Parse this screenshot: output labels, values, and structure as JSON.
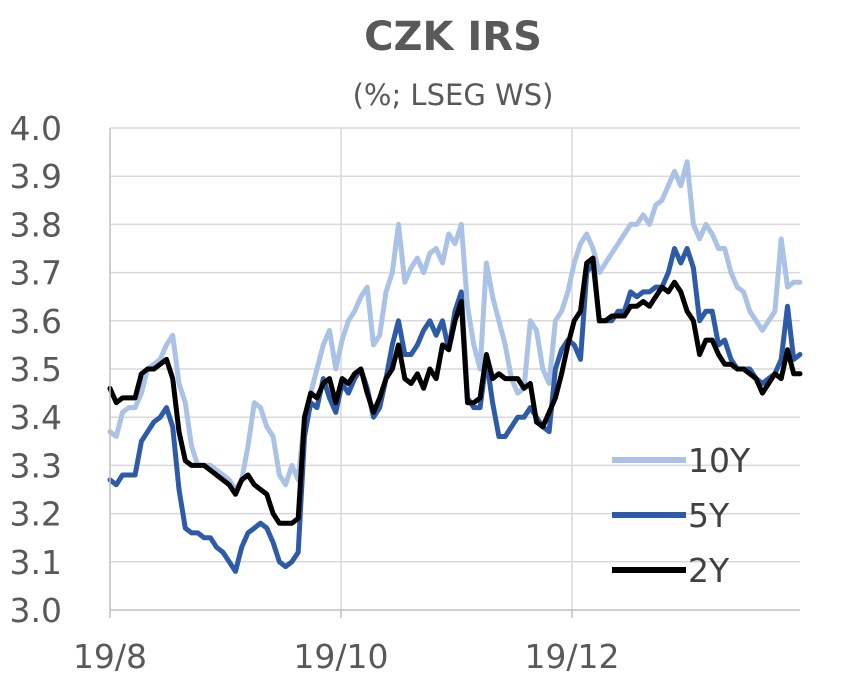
{
  "chart_data": {
    "type": "line",
    "title": "CZK IRS",
    "subtitle": "(%; LSEG WS)",
    "ylim": [
      3.0,
      4.0
    ],
    "y_ticks": [
      "4.0",
      "3.9",
      "3.8",
      "3.7",
      "3.6",
      "3.5",
      "3.4",
      "3.3",
      "3.2",
      "3.1",
      "3.0"
    ],
    "x_ticks": [
      "19/8",
      "19/10",
      "19/12"
    ],
    "grid": true,
    "legend_position": "bottom-right",
    "series": [
      {
        "name": "10Y",
        "color": "#a9c2e6",
        "values": [
          3.37,
          3.36,
          3.41,
          3.42,
          3.42,
          3.45,
          3.5,
          3.51,
          3.52,
          3.55,
          3.57,
          3.47,
          3.43,
          3.34,
          3.3,
          3.3,
          3.3,
          3.29,
          3.28,
          3.27,
          3.25,
          3.27,
          3.34,
          3.43,
          3.42,
          3.38,
          3.36,
          3.28,
          3.26,
          3.3,
          3.27,
          3.4,
          3.45,
          3.5,
          3.55,
          3.58,
          3.5,
          3.56,
          3.6,
          3.62,
          3.65,
          3.67,
          3.55,
          3.57,
          3.66,
          3.7,
          3.8,
          3.68,
          3.71,
          3.73,
          3.7,
          3.74,
          3.75,
          3.72,
          3.78,
          3.76,
          3.8,
          3.63,
          3.55,
          3.5,
          3.72,
          3.65,
          3.6,
          3.55,
          3.48,
          3.45,
          3.46,
          3.6,
          3.58,
          3.5,
          3.47,
          3.6,
          3.62,
          3.66,
          3.72,
          3.76,
          3.78,
          3.75,
          3.7,
          3.72,
          3.74,
          3.76,
          3.78,
          3.8,
          3.8,
          3.82,
          3.8,
          3.84,
          3.85,
          3.88,
          3.91,
          3.88,
          3.93,
          3.8,
          3.77,
          3.8,
          3.78,
          3.75,
          3.75,
          3.7,
          3.67,
          3.66,
          3.62,
          3.6,
          3.58,
          3.6,
          3.62,
          3.77,
          3.67,
          3.68,
          3.68
        ]
      },
      {
        "name": "5Y",
        "color": "#2e5ba8",
        "values": [
          3.27,
          3.26,
          3.28,
          3.28,
          3.28,
          3.35,
          3.37,
          3.39,
          3.4,
          3.42,
          3.38,
          3.25,
          3.17,
          3.16,
          3.16,
          3.15,
          3.15,
          3.13,
          3.12,
          3.1,
          3.08,
          3.13,
          3.16,
          3.17,
          3.18,
          3.17,
          3.14,
          3.1,
          3.09,
          3.1,
          3.12,
          3.36,
          3.43,
          3.42,
          3.48,
          3.44,
          3.41,
          3.47,
          3.45,
          3.48,
          3.5,
          3.46,
          3.4,
          3.42,
          3.48,
          3.55,
          3.6,
          3.53,
          3.53,
          3.55,
          3.58,
          3.6,
          3.57,
          3.6,
          3.54,
          3.62,
          3.66,
          3.44,
          3.42,
          3.42,
          3.52,
          3.43,
          3.36,
          3.36,
          3.38,
          3.4,
          3.4,
          3.42,
          3.4,
          3.38,
          3.37,
          3.5,
          3.54,
          3.56,
          3.55,
          3.52,
          3.7,
          3.72,
          3.6,
          3.6,
          3.6,
          3.62,
          3.62,
          3.66,
          3.65,
          3.66,
          3.66,
          3.67,
          3.67,
          3.7,
          3.75,
          3.72,
          3.75,
          3.71,
          3.6,
          3.62,
          3.62,
          3.55,
          3.56,
          3.52,
          3.5,
          3.5,
          3.5,
          3.48,
          3.47,
          3.48,
          3.49,
          3.52,
          3.63,
          3.52,
          3.53
        ]
      },
      {
        "name": "2Y",
        "color": "#000000",
        "values": [
          3.46,
          3.43,
          3.44,
          3.44,
          3.44,
          3.49,
          3.5,
          3.5,
          3.51,
          3.52,
          3.48,
          3.37,
          3.31,
          3.3,
          3.3,
          3.3,
          3.29,
          3.28,
          3.27,
          3.26,
          3.24,
          3.27,
          3.28,
          3.26,
          3.25,
          3.24,
          3.2,
          3.18,
          3.18,
          3.18,
          3.19,
          3.4,
          3.45,
          3.44,
          3.47,
          3.48,
          3.43,
          3.48,
          3.47,
          3.49,
          3.5,
          3.45,
          3.41,
          3.44,
          3.48,
          3.5,
          3.55,
          3.48,
          3.47,
          3.49,
          3.46,
          3.5,
          3.48,
          3.55,
          3.54,
          3.6,
          3.64,
          3.43,
          3.43,
          3.44,
          3.53,
          3.48,
          3.49,
          3.48,
          3.48,
          3.48,
          3.46,
          3.47,
          3.39,
          3.38,
          3.41,
          3.44,
          3.49,
          3.55,
          3.6,
          3.62,
          3.72,
          3.73,
          3.6,
          3.6,
          3.61,
          3.61,
          3.61,
          3.63,
          3.63,
          3.64,
          3.63,
          3.65,
          3.67,
          3.66,
          3.68,
          3.66,
          3.62,
          3.6,
          3.53,
          3.56,
          3.56,
          3.53,
          3.51,
          3.51,
          3.5,
          3.5,
          3.49,
          3.48,
          3.45,
          3.47,
          3.49,
          3.48,
          3.54,
          3.49,
          3.49
        ]
      }
    ]
  }
}
